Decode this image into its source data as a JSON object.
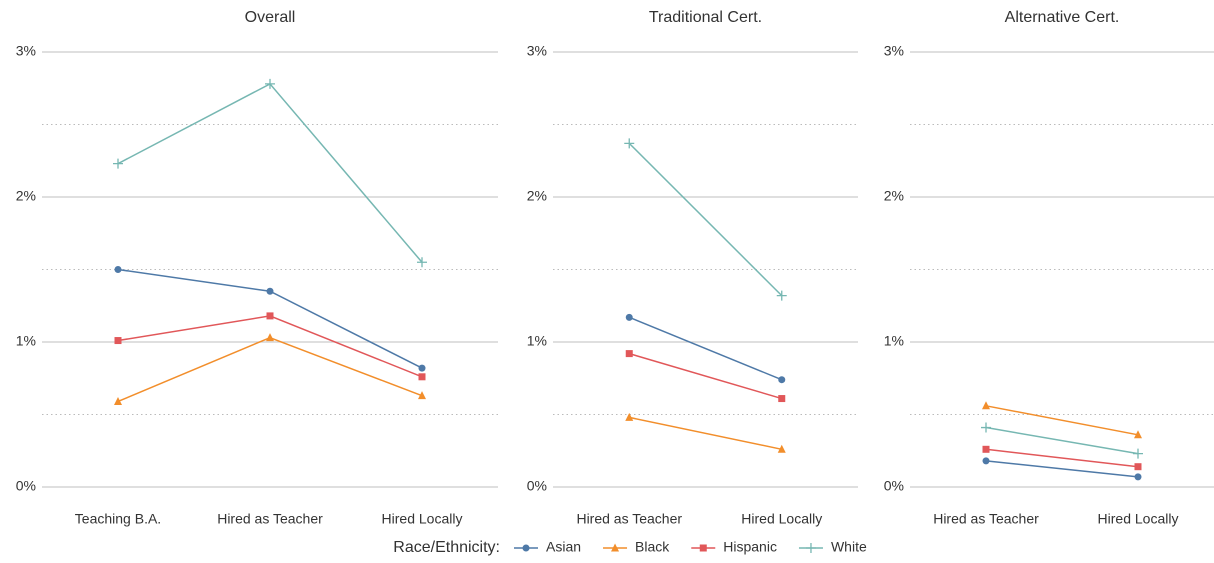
{
  "legend_title": "Race/Ethnicity:",
  "chart_data": [
    {
      "type": "line",
      "title": "Overall",
      "categories": [
        "Teaching B.A.",
        "Hired as Teacher",
        "Hired Locally"
      ],
      "series": [
        {
          "name": "Asian",
          "color": "#4e79a7",
          "marker": "circle",
          "values": [
            1.5,
            1.35,
            0.82
          ]
        },
        {
          "name": "Black",
          "color": "#f28e2b",
          "marker": "triangle",
          "values": [
            0.59,
            1.03,
            0.63
          ]
        },
        {
          "name": "Hispanic",
          "color": "#e15759",
          "marker": "square",
          "values": [
            1.01,
            1.18,
            0.76
          ]
        },
        {
          "name": "White",
          "color": "#76b7b2",
          "marker": "plus",
          "values": [
            2.23,
            2.78,
            1.55
          ]
        }
      ],
      "ylim": [
        0,
        3
      ],
      "yticks": [
        {
          "value": 0,
          "label": "0%"
        },
        {
          "value": 1,
          "label": "1%"
        },
        {
          "value": 2,
          "label": "2%"
        },
        {
          "value": 3,
          "label": "3%"
        }
      ],
      "minor_yticks": [
        0.5,
        1.5,
        2.5
      ],
      "grid": true
    },
    {
      "type": "line",
      "title": "Traditional Cert.",
      "categories": [
        "Hired as Teacher",
        "Hired Locally"
      ],
      "series": [
        {
          "name": "Asian",
          "color": "#4e79a7",
          "marker": "circle",
          "values": [
            1.17,
            0.74
          ]
        },
        {
          "name": "Black",
          "color": "#f28e2b",
          "marker": "triangle",
          "values": [
            0.48,
            0.26
          ]
        },
        {
          "name": "Hispanic",
          "color": "#e15759",
          "marker": "square",
          "values": [
            0.92,
            0.61
          ]
        },
        {
          "name": "White",
          "color": "#76b7b2",
          "marker": "plus",
          "values": [
            2.37,
            1.32
          ]
        }
      ],
      "ylim": [
        0,
        3
      ],
      "yticks": [
        {
          "value": 0,
          "label": "0%"
        },
        {
          "value": 1,
          "label": "1%"
        },
        {
          "value": 2,
          "label": "2%"
        },
        {
          "value": 3,
          "label": "3%"
        }
      ],
      "minor_yticks": [
        0.5,
        1.5,
        2.5
      ],
      "grid": true
    },
    {
      "type": "line",
      "title": "Alternative Cert.",
      "categories": [
        "Hired as Teacher",
        "Hired Locally"
      ],
      "series": [
        {
          "name": "Asian",
          "color": "#4e79a7",
          "marker": "circle",
          "values": [
            0.18,
            0.07
          ]
        },
        {
          "name": "Black",
          "color": "#f28e2b",
          "marker": "triangle",
          "values": [
            0.56,
            0.36
          ]
        },
        {
          "name": "Hispanic",
          "color": "#e15759",
          "marker": "square",
          "values": [
            0.26,
            0.14
          ]
        },
        {
          "name": "White",
          "color": "#76b7b2",
          "marker": "plus",
          "values": [
            0.41,
            0.23
          ]
        }
      ],
      "ylim": [
        0,
        3
      ],
      "yticks": [
        {
          "value": 0,
          "label": "0%"
        },
        {
          "value": 1,
          "label": "1%"
        },
        {
          "value": 2,
          "label": "2%"
        },
        {
          "value": 3,
          "label": "3%"
        }
      ],
      "minor_yticks": [
        0.5,
        1.5,
        2.5
      ],
      "grid": true
    }
  ]
}
